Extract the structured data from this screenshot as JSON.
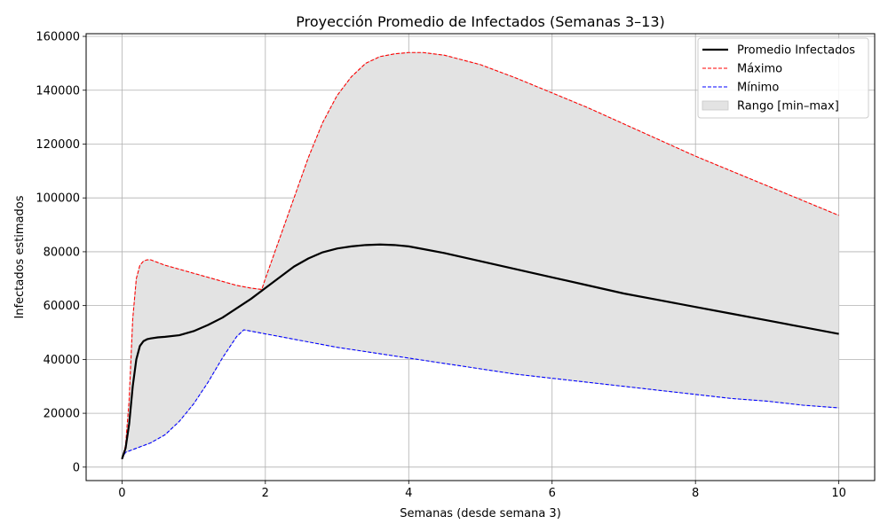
{
  "chart_data": {
    "type": "line",
    "title": "Proyección Promedio de Infectados (Semanas 3–13)",
    "xlabel": "Semanas (desde semana 3)",
    "ylabel": "Infectados estimados",
    "xlim": [
      -0.5,
      10.5
    ],
    "ylim": [
      -5000,
      161000
    ],
    "xticks": [
      0,
      2,
      4,
      6,
      8,
      10
    ],
    "yticks": [
      0,
      20000,
      40000,
      60000,
      80000,
      100000,
      120000,
      140000,
      160000
    ],
    "grid": true,
    "legend_position": "top-right",
    "series": [
      {
        "name": "Promedio Infectados",
        "color": "#000000",
        "style": "solid",
        "x": [
          0,
          0.05,
          0.1,
          0.15,
          0.2,
          0.25,
          0.3,
          0.35,
          0.4,
          0.5,
          0.6,
          0.8,
          1.0,
          1.2,
          1.4,
          1.6,
          1.8,
          2.0,
          2.2,
          2.4,
          2.6,
          2.8,
          3.0,
          3.2,
          3.4,
          3.6,
          3.8,
          4.0,
          4.2,
          4.5,
          5.0,
          5.5,
          6.0,
          6.5,
          7.0,
          7.5,
          8.0,
          8.5,
          9.0,
          9.5,
          10.0
        ],
        "values": [
          3000,
          7000,
          16000,
          30000,
          40000,
          45000,
          46800,
          47500,
          47800,
          48200,
          48400,
          49000,
          50500,
          52800,
          55500,
          59000,
          62500,
          66500,
          70500,
          74500,
          77500,
          79800,
          81200,
          82000,
          82500,
          82700,
          82500,
          82000,
          81000,
          79500,
          76500,
          73500,
          70500,
          67500,
          64500,
          62000,
          59500,
          57000,
          54500,
          52000,
          49500
        ]
      },
      {
        "name": "Máximo",
        "color": "#ff0000",
        "style": "dashed",
        "x": [
          0,
          0.05,
          0.1,
          0.15,
          0.2,
          0.25,
          0.3,
          0.35,
          0.4,
          0.5,
          0.6,
          0.8,
          1.0,
          1.2,
          1.4,
          1.6,
          1.8,
          1.95,
          2.0,
          2.2,
          2.4,
          2.6,
          2.8,
          3.0,
          3.2,
          3.4,
          3.6,
          3.8,
          4.0,
          4.2,
          4.5,
          5.0,
          5.5,
          6.0,
          6.5,
          7.0,
          7.5,
          8.0,
          8.5,
          9.0,
          9.5,
          10.0
        ],
        "values": [
          3000,
          8000,
          25000,
          55000,
          70000,
          75000,
          76500,
          77000,
          77000,
          76000,
          75000,
          73500,
          72000,
          70500,
          69000,
          67500,
          66500,
          66000,
          70000,
          85000,
          100000,
          115000,
          128000,
          138000,
          145000,
          150000,
          152500,
          153500,
          154000,
          154000,
          153000,
          149500,
          144500,
          139000,
          133500,
          127500,
          121500,
          115500,
          110000,
          104500,
          99000,
          93500
        ]
      },
      {
        "name": "Mínimo",
        "color": "#0000ff",
        "style": "dashed",
        "x": [
          0,
          0.05,
          0.2,
          0.4,
          0.6,
          0.8,
          1.0,
          1.2,
          1.4,
          1.6,
          1.7,
          1.8,
          2.0,
          2.5,
          3.0,
          3.5,
          4.0,
          4.5,
          5.0,
          5.5,
          6.0,
          6.5,
          7.0,
          7.5,
          8.0,
          8.5,
          9.0,
          9.5,
          10.0
        ],
        "values": [
          3000,
          5500,
          7000,
          9000,
          12000,
          17000,
          23500,
          31500,
          40500,
          48500,
          51000,
          50500,
          49500,
          47000,
          44500,
          42500,
          40500,
          38500,
          36500,
          34500,
          33000,
          31500,
          30000,
          28500,
          27000,
          25500,
          24500,
          23000,
          22000
        ]
      }
    ],
    "band": {
      "name": "Rango [min–max]",
      "color": "#e3e3e3",
      "edge": "#c8c8c8",
      "between": [
        "Mínimo",
        "Máximo"
      ]
    }
  }
}
